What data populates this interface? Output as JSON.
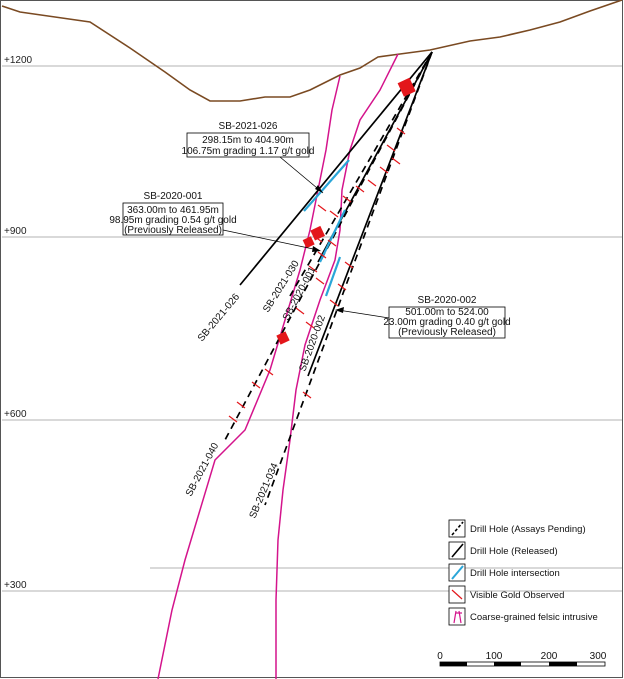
{
  "elevations": [
    "+1200",
    "+900",
    "+600",
    "+300"
  ],
  "holes": {
    "h026": "SB-2021-026",
    "h030": "SB-2021-030",
    "h001": "SB-2020-001",
    "h002": "SB-2020-002",
    "h040": "SB-2021-040",
    "h034": "SB-2021-034"
  },
  "callouts": {
    "c026": [
      "SB-2021-026",
      "298.15m to 404.90m",
      "106.75m grading 1.17 g/t gold"
    ],
    "c001": [
      "SB-2020-001",
      "363.00m to 461.95m",
      "98.95m grading 0.54 g/t gold",
      "(Previously Released)"
    ],
    "c002": [
      "SB-2020-002",
      "501.00m to 524.00",
      "23.00m grading 0.40 g/t gold",
      "(Previously Released)"
    ]
  },
  "legend": [
    "Drill Hole (Assays Pending)",
    "Drill Hole (Released)",
    "Drill Hole intersection",
    "Visible Gold Observed",
    "Coarse-grained felsic intrusive"
  ],
  "scale": [
    "0",
    "100",
    "200",
    "300"
  ],
  "colors": {
    "topography": "#7a4a22",
    "intrusive": "#d4148c",
    "intersection": "#2aa6d8",
    "gold": "#e3161b",
    "hole": "#000000",
    "gridline": "#999999"
  }
}
